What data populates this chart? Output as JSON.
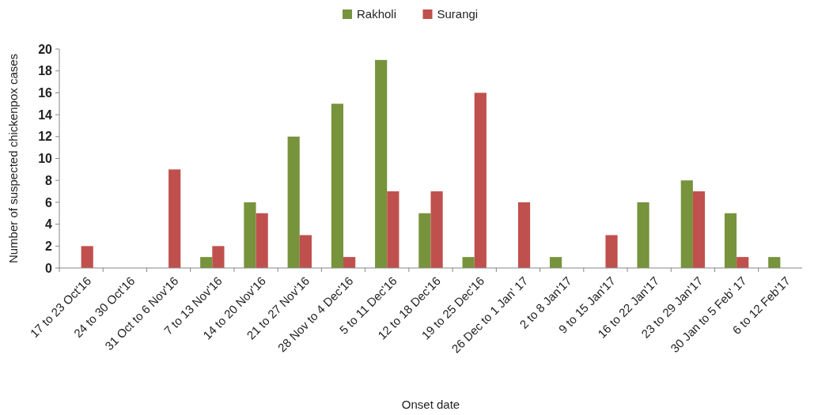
{
  "chart_data": {
    "type": "bar",
    "xlabel": "Onset date",
    "ylabel": "Number of suspected chickenpox cases",
    "categories": [
      "17 to 23 Oct'16",
      "24 to 30 Oct'16",
      "31 Oct to 6 Nov'16",
      "7 to 13 Nov'16",
      "14 to 20 Nov'16",
      "21 to 27 Nov'16",
      "28 Nov to 4 Dec'16",
      "5 to 11 Dec'16",
      "12 to 18 Dec'16",
      "19 to 25 Dec'16",
      "26 Dec to 1 Jan' 17",
      "2 to 8 Jan'17",
      "9 to 15 Jan'17",
      "16 to 22 Jan'17",
      "23 to 29 Jan'17",
      "30 Jan to 5 Feb' 17",
      "6 to 12 Feb'17"
    ],
    "series": [
      {
        "name": "Rakholi",
        "color": "#77933c",
        "values": [
          0,
          0,
          0,
          1,
          6,
          12,
          15,
          19,
          5,
          1,
          0,
          1,
          0,
          6,
          8,
          5,
          1
        ]
      },
      {
        "name": "Surangi",
        "color": "#c0504d",
        "values": [
          2,
          0,
          9,
          2,
          5,
          3,
          1,
          7,
          7,
          16,
          6,
          0,
          3,
          0,
          7,
          1,
          0
        ]
      }
    ],
    "ylim": [
      0,
      20
    ],
    "yticks": [
      0,
      2,
      4,
      6,
      8,
      10,
      12,
      14,
      16,
      18,
      20
    ],
    "grid": false,
    "legend": "top"
  }
}
